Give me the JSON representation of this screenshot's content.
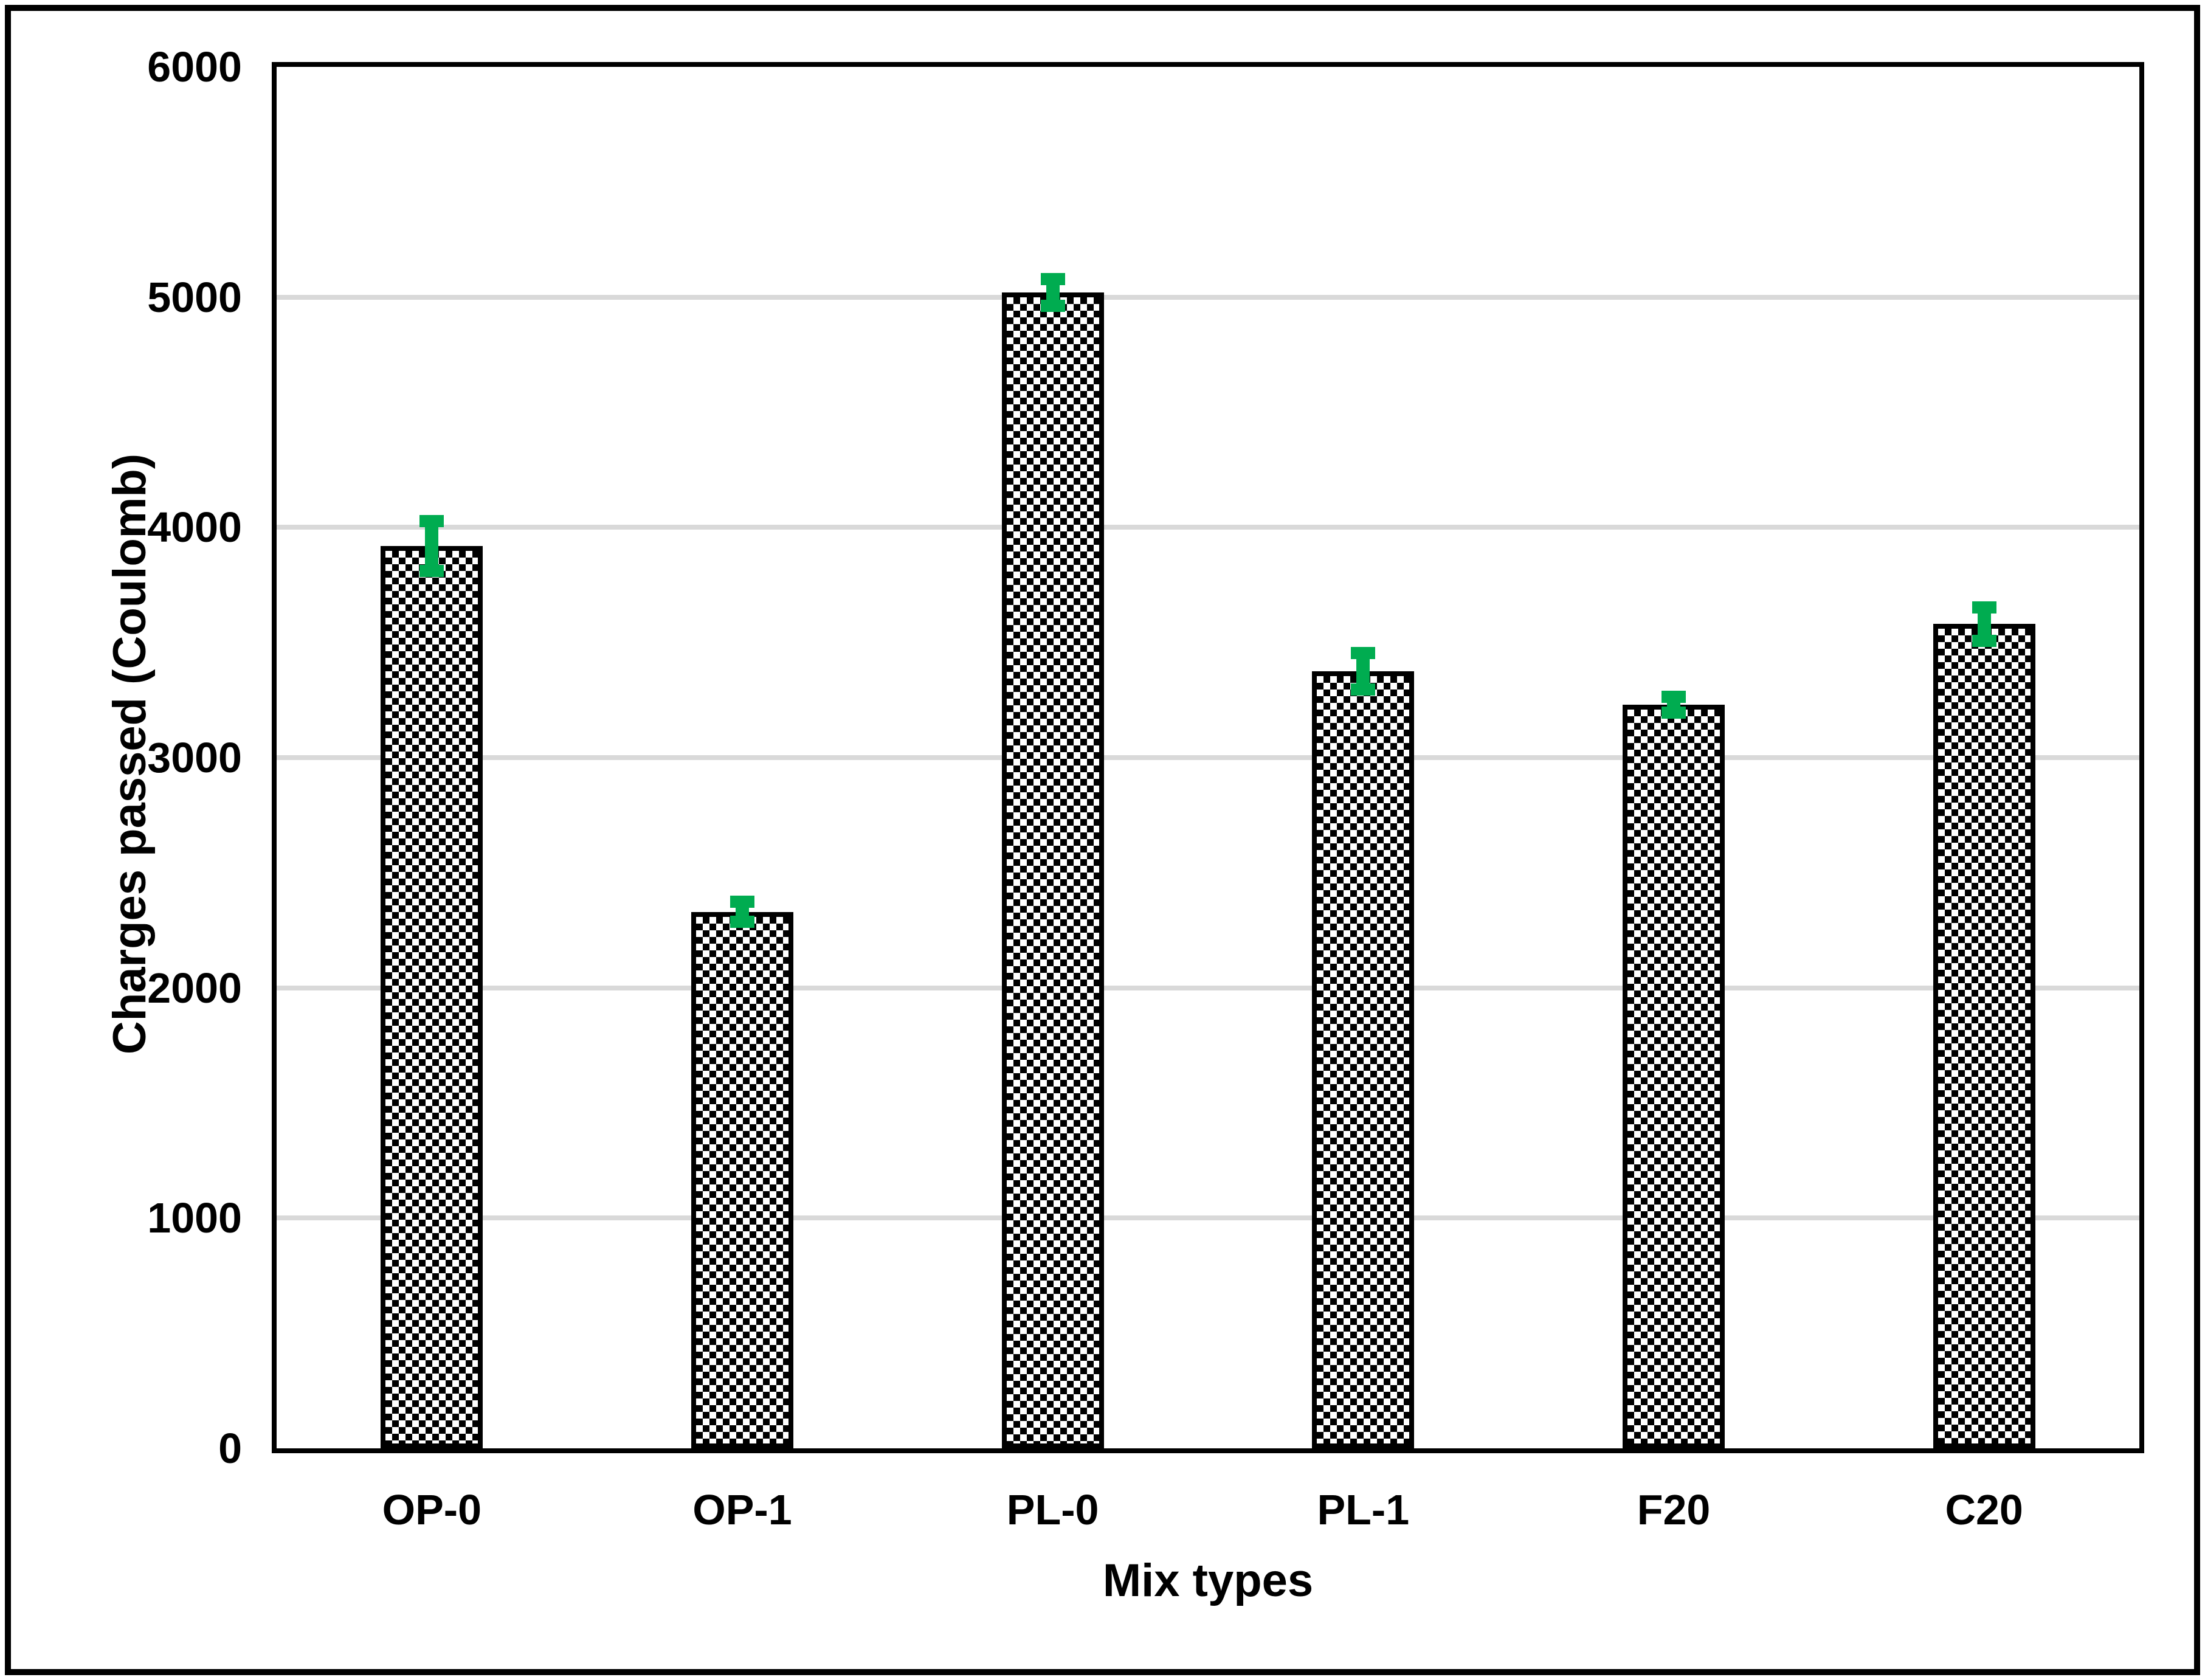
{
  "chart_data": {
    "type": "bar",
    "title": "",
    "xlabel": "Mix types",
    "ylabel": "Charges passed (Coulomb)",
    "categories": [
      "OP-0",
      "OP-1",
      "PL-0",
      "PL-1",
      "F20",
      "C20"
    ],
    "series": [
      {
        "name": "Charges passed",
        "values": [
          3920,
          2330,
          5020,
          3375,
          3230,
          3580
        ],
        "error_bars": [
          135,
          70,
          85,
          105,
          60,
          100
        ]
      }
    ],
    "ylim": [
      0,
      6000
    ],
    "ytick_step": 1000,
    "yticks": [
      "0",
      "1000",
      "2000",
      "3000",
      "4000",
      "5000",
      "6000"
    ],
    "grid": true,
    "legend_position": "none",
    "bar_fill": "black-white checkerboard pattern",
    "colors": {
      "bar_border": "#000000",
      "bar_pattern_fg": "#000000",
      "bar_pattern_bg": "#ffffff",
      "error_bar": "#00AC50",
      "gridline": "#D9D9D9",
      "plot_border": "#000000",
      "figure_border": "#000000",
      "background": "#ffffff"
    }
  }
}
